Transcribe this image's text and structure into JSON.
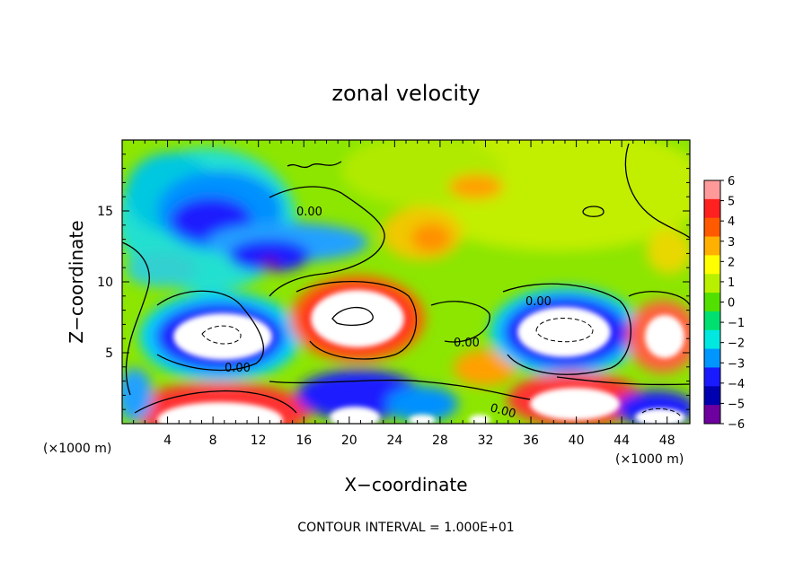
{
  "chart_data": {
    "type": "heatmap",
    "title": "zonal velocity",
    "xlabel": "X−coordinate",
    "ylabel": "Z−coordinate",
    "x_unit": "(×1000 m)",
    "y_unit": "(×1000 m)",
    "footer": "CONTOUR INTERVAL = 1.000E+01",
    "contour_label": "0.00",
    "xlim": [
      0,
      50
    ],
    "ylim": [
      0,
      20
    ],
    "x_ticks": [
      "4",
      "8",
      "12",
      "16",
      "20",
      "24",
      "28",
      "32",
      "36",
      "40",
      "44",
      "48"
    ],
    "y_ticks": [
      "5",
      "10",
      "15"
    ],
    "colorbar": {
      "range": [
        -6,
        6
      ],
      "labels": [
        "6",
        "5",
        "4",
        "3",
        "2",
        "1",
        "0",
        "−1",
        "−2",
        "−3",
        "−4",
        "−5",
        "−6"
      ],
      "colors": [
        "#ff9a9a",
        "#ff2020",
        "#ff5a00",
        "#ffb000",
        "#ffff00",
        "#b8f000",
        "#52e000",
        "#00e070",
        "#00e8e0",
        "#0096ff",
        "#1a1aff",
        "#0000b0",
        "#6e00a0"
      ]
    },
    "features": [
      {
        "name": "strong westward jet (blue)",
        "x": 8,
        "z": 15.5,
        "value": -5
      },
      {
        "name": "blue band",
        "x": 12,
        "z": 12.5,
        "value": -4
      },
      {
        "name": "minimum",
        "x": 13.5,
        "z": 11,
        "value": -6
      },
      {
        "name": "positive core (white)",
        "x": 20,
        "z": 7.5,
        "value": 8
      },
      {
        "name": "negative core (white)",
        "x": 8,
        "z": 6.5,
        "value": -8
      },
      {
        "name": "negative core (white)",
        "x": 39,
        "z": 6.5,
        "value": -8
      },
      {
        "name": "positive core (white)",
        "x": 48.5,
        "z": 6.5,
        "value": 8
      },
      {
        "name": "positive core (white)",
        "x": 9,
        "z": 1.5,
        "value": 8
      },
      {
        "name": "positive core (white)",
        "x": 41,
        "z": 1.5,
        "value": 8
      },
      {
        "name": "orange patch",
        "x": 26,
        "z": 13.5,
        "value": 3
      },
      {
        "name": "orange patch",
        "x": 30,
        "z": 17,
        "value": 3
      }
    ]
  }
}
